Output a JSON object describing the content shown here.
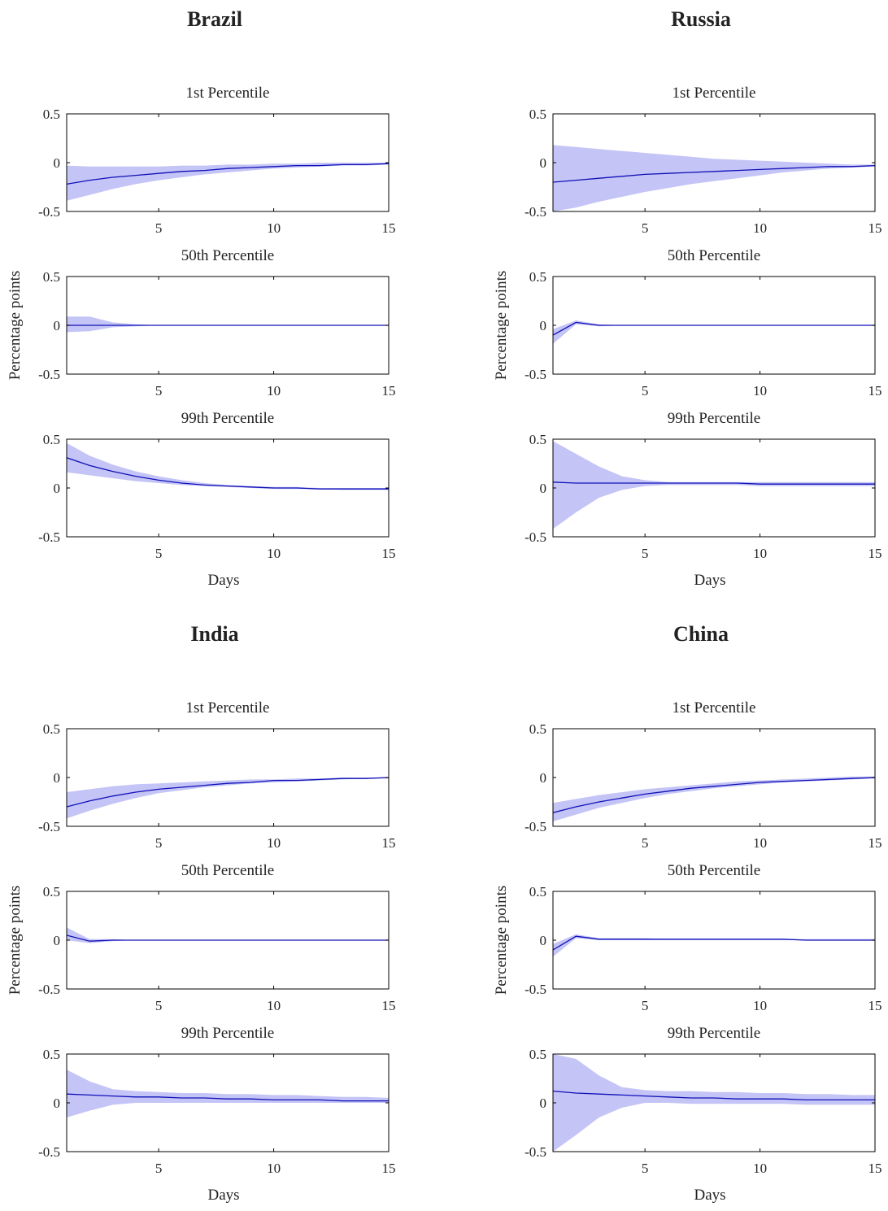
{
  "chart_data": [
    {
      "country": "Brazil",
      "type": "line",
      "ylabel": "Percentage points",
      "xlabel": "Days",
      "xlim": [
        1,
        15
      ],
      "ylim": [
        -0.5,
        0.5
      ],
      "xticks": [
        "5",
        "10",
        "15"
      ],
      "yticks": [
        "0.5",
        "0",
        "-0.5"
      ],
      "panels": [
        {
          "title": "1st Percentile",
          "x": [
            1,
            2,
            3,
            4,
            5,
            6,
            7,
            8,
            9,
            10,
            11,
            12,
            13,
            14,
            15
          ],
          "median": [
            -0.22,
            -0.18,
            -0.15,
            -0.13,
            -0.11,
            -0.09,
            -0.08,
            -0.06,
            -0.05,
            -0.04,
            -0.03,
            -0.03,
            -0.02,
            -0.02,
            -0.01
          ],
          "lower": [
            -0.39,
            -0.33,
            -0.27,
            -0.22,
            -0.18,
            -0.15,
            -0.12,
            -0.1,
            -0.08,
            -0.06,
            -0.05,
            -0.04,
            -0.03,
            -0.03,
            -0.02
          ],
          "upper": [
            -0.03,
            -0.04,
            -0.04,
            -0.04,
            -0.04,
            -0.03,
            -0.03,
            -0.02,
            -0.02,
            -0.01,
            -0.01,
            0.0,
            0.0,
            0.0,
            0.0
          ]
        },
        {
          "title": "50th Percentile",
          "x": [
            1,
            2,
            3,
            4,
            5,
            6,
            7,
            8,
            9,
            10,
            11,
            12,
            13,
            14,
            15
          ],
          "median": [
            0.0,
            0.0,
            0.0,
            0.0,
            0.0,
            0.0,
            0.0,
            0.0,
            0.0,
            0.0,
            0.0,
            0.0,
            0.0,
            0.0,
            0.0
          ],
          "lower": [
            -0.07,
            -0.06,
            -0.02,
            -0.01,
            0.0,
            0.0,
            0.0,
            0.0,
            0.0,
            0.0,
            0.0,
            0.0,
            0.0,
            0.0,
            0.0
          ],
          "upper": [
            0.09,
            0.09,
            0.03,
            0.01,
            0.0,
            0.0,
            0.0,
            0.0,
            0.0,
            0.0,
            0.0,
            0.0,
            0.0,
            0.0,
            0.0
          ]
        },
        {
          "title": "99th Percentile",
          "x": [
            1,
            2,
            3,
            4,
            5,
            6,
            7,
            8,
            9,
            10,
            11,
            12,
            13,
            14,
            15
          ],
          "median": [
            0.31,
            0.23,
            0.17,
            0.12,
            0.08,
            0.05,
            0.03,
            0.02,
            0.01,
            0.0,
            0.0,
            -0.01,
            -0.01,
            -0.01,
            -0.01
          ],
          "lower": [
            0.16,
            0.13,
            0.1,
            0.07,
            0.05,
            0.03,
            0.02,
            0.01,
            0.0,
            -0.01,
            -0.01,
            -0.01,
            -0.02,
            -0.02,
            -0.02
          ],
          "upper": [
            0.46,
            0.33,
            0.24,
            0.17,
            0.12,
            0.08,
            0.05,
            0.03,
            0.02,
            0.01,
            0.01,
            0.0,
            0.0,
            0.0,
            0.0
          ]
        }
      ]
    },
    {
      "country": "Russia",
      "type": "line",
      "ylabel": "Percentage points",
      "xlabel": "Days",
      "xlim": [
        1,
        15
      ],
      "ylim": [
        -0.5,
        0.5
      ],
      "xticks": [
        "5",
        "10",
        "15"
      ],
      "yticks": [
        "0.5",
        "0",
        "-0.5"
      ],
      "panels": [
        {
          "title": "1st Percentile",
          "x": [
            1,
            2,
            3,
            4,
            5,
            6,
            7,
            8,
            9,
            10,
            11,
            12,
            13,
            14,
            15
          ],
          "median": [
            -0.2,
            -0.18,
            -0.16,
            -0.14,
            -0.12,
            -0.11,
            -0.1,
            -0.09,
            -0.08,
            -0.07,
            -0.06,
            -0.05,
            -0.04,
            -0.04,
            -0.03
          ],
          "lower": [
            -0.5,
            -0.46,
            -0.4,
            -0.35,
            -0.3,
            -0.26,
            -0.22,
            -0.19,
            -0.16,
            -0.13,
            -0.1,
            -0.08,
            -0.06,
            -0.05,
            -0.04
          ],
          "upper": [
            0.18,
            0.16,
            0.14,
            0.12,
            0.1,
            0.08,
            0.06,
            0.04,
            0.03,
            0.02,
            0.01,
            0.0,
            -0.01,
            -0.02,
            -0.02
          ]
        },
        {
          "title": "50th Percentile",
          "x": [
            1,
            2,
            3,
            4,
            5,
            6,
            7,
            8,
            9,
            10,
            11,
            12,
            13,
            14,
            15
          ],
          "median": [
            -0.1,
            0.03,
            0.0,
            0.0,
            0.0,
            0.0,
            0.0,
            0.0,
            0.0,
            0.0,
            0.0,
            0.0,
            0.0,
            0.0,
            0.0
          ],
          "lower": [
            -0.19,
            0.01,
            -0.01,
            0.0,
            0.0,
            0.0,
            0.0,
            0.0,
            0.0,
            0.0,
            0.0,
            0.0,
            0.0,
            0.0,
            0.0
          ],
          "upper": [
            -0.04,
            0.05,
            0.01,
            0.0,
            0.0,
            0.0,
            0.0,
            0.0,
            0.0,
            0.0,
            0.0,
            0.0,
            0.0,
            0.0,
            0.0
          ]
        },
        {
          "title": "99th Percentile",
          "x": [
            1,
            2,
            3,
            4,
            5,
            6,
            7,
            8,
            9,
            10,
            11,
            12,
            13,
            14,
            15
          ],
          "median": [
            0.06,
            0.05,
            0.05,
            0.05,
            0.05,
            0.05,
            0.05,
            0.05,
            0.05,
            0.04,
            0.04,
            0.04,
            0.04,
            0.04,
            0.04
          ],
          "lower": [
            -0.42,
            -0.25,
            -0.1,
            -0.02,
            0.02,
            0.03,
            0.03,
            0.03,
            0.03,
            0.02,
            0.02,
            0.02,
            0.02,
            0.02,
            0.02
          ],
          "upper": [
            0.48,
            0.35,
            0.22,
            0.12,
            0.08,
            0.06,
            0.06,
            0.06,
            0.06,
            0.06,
            0.06,
            0.06,
            0.06,
            0.06,
            0.06
          ]
        }
      ]
    },
    {
      "country": "India",
      "type": "line",
      "ylabel": "Percentage points",
      "xlabel": "Days",
      "xlim": [
        1,
        15
      ],
      "ylim": [
        -0.5,
        0.5
      ],
      "xticks": [
        "5",
        "10",
        "15"
      ],
      "yticks": [
        "0.5",
        "0",
        "-0.5"
      ],
      "panels": [
        {
          "title": "1st Percentile",
          "x": [
            1,
            2,
            3,
            4,
            5,
            6,
            7,
            8,
            9,
            10,
            11,
            12,
            13,
            14,
            15
          ],
          "median": [
            -0.3,
            -0.24,
            -0.19,
            -0.15,
            -0.12,
            -0.1,
            -0.08,
            -0.06,
            -0.05,
            -0.03,
            -0.03,
            -0.02,
            -0.01,
            -0.01,
            0.0
          ],
          "lower": [
            -0.42,
            -0.34,
            -0.27,
            -0.21,
            -0.16,
            -0.13,
            -0.1,
            -0.08,
            -0.06,
            -0.05,
            -0.04,
            -0.03,
            -0.02,
            -0.01,
            -0.01
          ],
          "upper": [
            -0.15,
            -0.12,
            -0.09,
            -0.07,
            -0.06,
            -0.05,
            -0.04,
            -0.03,
            -0.02,
            -0.02,
            -0.01,
            -0.01,
            0.0,
            0.0,
            0.0
          ]
        },
        {
          "title": "50th Percentile",
          "x": [
            1,
            2,
            3,
            4,
            5,
            6,
            7,
            8,
            9,
            10,
            11,
            12,
            13,
            14,
            15
          ],
          "median": [
            0.05,
            -0.01,
            0.0,
            0.0,
            0.0,
            0.0,
            0.0,
            0.0,
            0.0,
            0.0,
            0.0,
            0.0,
            0.0,
            0.0,
            0.0
          ],
          "lower": [
            0.0,
            -0.03,
            -0.01,
            0.0,
            0.0,
            0.0,
            0.0,
            0.0,
            0.0,
            0.0,
            0.0,
            0.0,
            0.0,
            0.0,
            0.0
          ],
          "upper": [
            0.13,
            0.01,
            0.01,
            0.0,
            0.0,
            0.0,
            0.0,
            0.0,
            0.0,
            0.0,
            0.0,
            0.0,
            0.0,
            0.0,
            0.0
          ]
        },
        {
          "title": "99th Percentile",
          "x": [
            1,
            2,
            3,
            4,
            5,
            6,
            7,
            8,
            9,
            10,
            11,
            12,
            13,
            14,
            15
          ],
          "median": [
            0.09,
            0.08,
            0.07,
            0.06,
            0.06,
            0.05,
            0.05,
            0.04,
            0.04,
            0.03,
            0.03,
            0.03,
            0.02,
            0.02,
            0.02
          ],
          "lower": [
            -0.15,
            -0.08,
            -0.02,
            0.0,
            0.0,
            0.0,
            0.0,
            0.0,
            0.0,
            0.0,
            0.0,
            0.0,
            0.0,
            0.0,
            0.0
          ],
          "upper": [
            0.34,
            0.22,
            0.14,
            0.12,
            0.11,
            0.1,
            0.1,
            0.09,
            0.09,
            0.08,
            0.08,
            0.07,
            0.06,
            0.06,
            0.05
          ]
        }
      ]
    },
    {
      "country": "China",
      "type": "line",
      "ylabel": "Percentage points",
      "xlabel": "Days",
      "xlim": [
        1,
        15
      ],
      "ylim": [
        -0.5,
        0.5
      ],
      "xticks": [
        "5",
        "10",
        "15"
      ],
      "yticks": [
        "0.5",
        "0",
        "-0.5"
      ],
      "panels": [
        {
          "title": "1st Percentile",
          "x": [
            1,
            2,
            3,
            4,
            5,
            6,
            7,
            8,
            9,
            10,
            11,
            12,
            13,
            14,
            15
          ],
          "median": [
            -0.36,
            -0.3,
            -0.25,
            -0.21,
            -0.17,
            -0.14,
            -0.11,
            -0.09,
            -0.07,
            -0.05,
            -0.04,
            -0.03,
            -0.02,
            -0.01,
            0.0
          ],
          "lower": [
            -0.45,
            -0.38,
            -0.31,
            -0.26,
            -0.21,
            -0.17,
            -0.14,
            -0.11,
            -0.09,
            -0.07,
            -0.05,
            -0.04,
            -0.03,
            -0.02,
            -0.01
          ],
          "upper": [
            -0.26,
            -0.22,
            -0.18,
            -0.15,
            -0.12,
            -0.1,
            -0.08,
            -0.06,
            -0.04,
            -0.03,
            -0.02,
            -0.01,
            0.0,
            0.01,
            0.01
          ]
        },
        {
          "title": "50th Percentile",
          "x": [
            1,
            2,
            3,
            4,
            5,
            6,
            7,
            8,
            9,
            10,
            11,
            12,
            13,
            14,
            15
          ],
          "median": [
            -0.1,
            0.04,
            0.01,
            0.01,
            0.01,
            0.01,
            0.01,
            0.01,
            0.01,
            0.01,
            0.01,
            0.0,
            0.0,
            0.0,
            0.0
          ],
          "lower": [
            -0.17,
            0.02,
            0.0,
            0.0,
            0.0,
            0.0,
            0.0,
            0.0,
            0.0,
            0.0,
            0.0,
            0.0,
            0.0,
            0.0,
            0.0
          ],
          "upper": [
            -0.04,
            0.06,
            0.02,
            0.02,
            0.02,
            0.01,
            0.01,
            0.01,
            0.01,
            0.01,
            0.01,
            0.01,
            0.01,
            0.01,
            0.01
          ]
        },
        {
          "title": "99th Percentile",
          "x": [
            1,
            2,
            3,
            4,
            5,
            6,
            7,
            8,
            9,
            10,
            11,
            12,
            13,
            14,
            15
          ],
          "median": [
            0.12,
            0.1,
            0.09,
            0.08,
            0.07,
            0.06,
            0.05,
            0.05,
            0.04,
            0.04,
            0.04,
            0.03,
            0.03,
            0.03,
            0.03
          ],
          "lower": [
            -0.5,
            -0.33,
            -0.15,
            -0.05,
            0.0,
            0.0,
            -0.01,
            -0.01,
            -0.01,
            -0.01,
            -0.01,
            -0.02,
            -0.02,
            -0.02,
            -0.02
          ],
          "upper": [
            0.5,
            0.45,
            0.28,
            0.16,
            0.13,
            0.12,
            0.12,
            0.11,
            0.11,
            0.1,
            0.1,
            0.09,
            0.09,
            0.08,
            0.08
          ]
        }
      ]
    }
  ]
}
